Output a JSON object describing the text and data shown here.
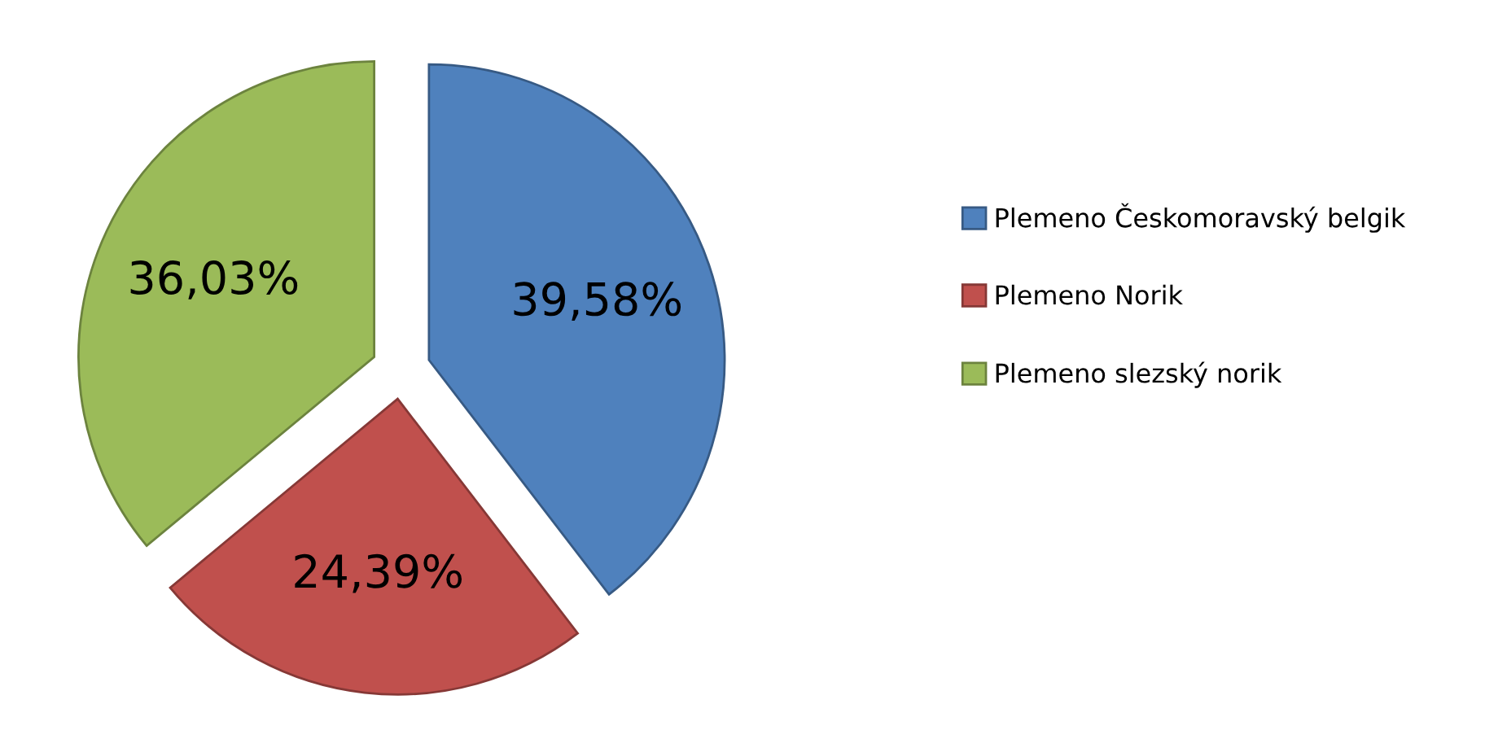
{
  "chart_data": {
    "type": "pie",
    "categories": [
      "Plemeno Českomoravský belgik",
      "Plemeno Norik",
      "Plemeno slezský norik"
    ],
    "values": [
      39.58,
      24.39,
      36.03
    ],
    "colors": [
      "#4f81bd",
      "#c0504d",
      "#9bbb59"
    ],
    "value_labels": [
      "39,58%",
      "24,39%",
      "36,03%"
    ],
    "legend": "right"
  }
}
